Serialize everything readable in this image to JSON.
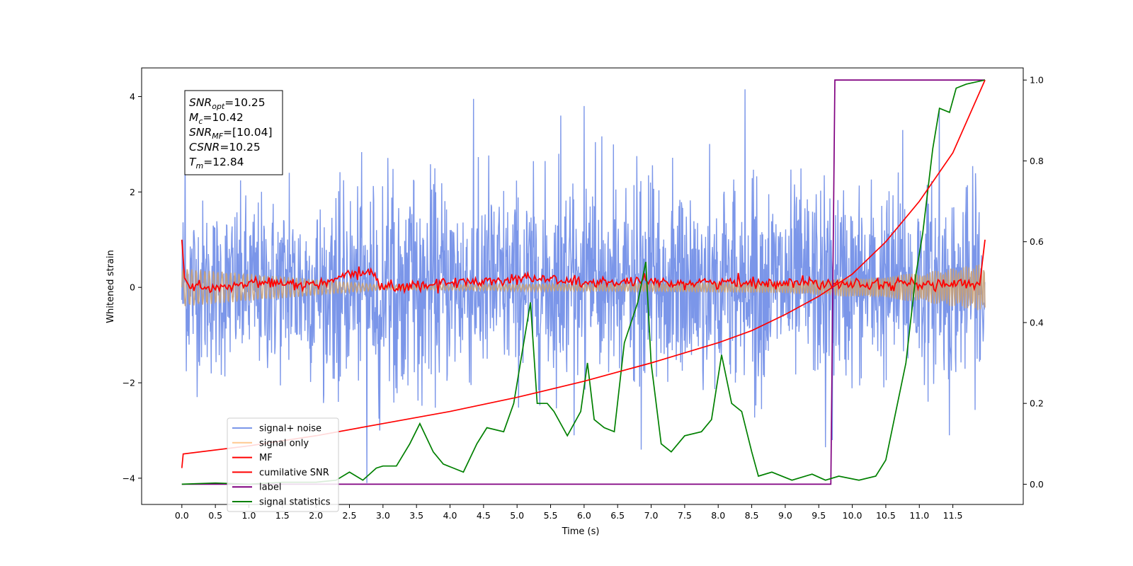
{
  "chart_data": {
    "type": "line",
    "xlabel": "Time (s)",
    "ylabel": "Whitened strain",
    "xlim": [
      -0.6,
      12.55
    ],
    "ylim": [
      -4.55,
      4.6
    ],
    "ylim_right": [
      -0.05,
      1.03
    ],
    "xticks": [
      "0.0",
      "0.5",
      "1.0",
      "1.5",
      "2.0",
      "2.5",
      "3.0",
      "3.5",
      "4.0",
      "4.5",
      "5.0",
      "5.5",
      "6.0",
      "6.5",
      "7.0",
      "7.5",
      "8.0",
      "8.5",
      "9.0",
      "9.5",
      "10.0",
      "10.5",
      "11.0",
      "11.5"
    ],
    "yticks_left": [
      "4",
      "2",
      "0",
      "−2",
      "−4"
    ],
    "yticks_right": [
      "1.0",
      "0.8",
      "0.6",
      "0.4",
      "0.2",
      "0.0"
    ],
    "grid": false,
    "legend_position": "lower-left",
    "legend": [
      "signal+ noise",
      "signal only",
      "MF",
      "cumilative SNR",
      "label",
      "signal statistics"
    ],
    "annotation": [
      {
        "base": "SNR",
        "sub": "opt",
        "rest": "=10.25"
      },
      {
        "base": "M",
        "sub": "c",
        "rest": "=10.42"
      },
      {
        "base": "SNR",
        "sub": "MF",
        "rest": "=[10.04]"
      },
      {
        "base": "CSNR",
        "sub": "",
        "rest": "=10.25"
      },
      {
        "base": "T",
        "sub": "m",
        "rest": "=12.84"
      }
    ],
    "series": [
      {
        "name": "signal+ noise",
        "axis": "left",
        "color": "#7b96e9",
        "envelope": {
          "x": [
            0,
            0.5,
            1.0,
            2.0,
            3.0,
            4.0,
            5.0,
            6.0,
            7.0,
            8.0,
            9.0,
            10.0,
            11.0,
            11.98
          ],
          "high": [
            2.8,
            2.4,
            2.6,
            2.7,
            3.0,
            3.2,
            3.0,
            3.3,
            3.0,
            3.1,
            3.0,
            3.0,
            3.0,
            2.7
          ],
          "low": [
            -2.4,
            -2.6,
            -2.5,
            -2.6,
            -2.8,
            -2.8,
            -2.7,
            -2.9,
            -2.8,
            -2.9,
            -2.7,
            -2.7,
            -2.6,
            -2.6
          ]
        },
        "spikes": [
          [
            0.05,
            3.2
          ],
          [
            1.6,
            2.4
          ],
          [
            2.76,
            -4.1
          ],
          [
            2.95,
            -3.0
          ],
          [
            4.35,
            3.95
          ],
          [
            5.65,
            3.6
          ],
          [
            5.85,
            -3.1
          ],
          [
            6.0,
            3.8
          ],
          [
            6.85,
            -3.4
          ],
          [
            8.4,
            4.15
          ],
          [
            9.6,
            -3.35
          ],
          [
            9.7,
            -3.2
          ],
          [
            10.75,
            3.3
          ],
          [
            11.3,
            3.7
          ],
          [
            11.45,
            -3.1
          ]
        ]
      },
      {
        "name": "signal only",
        "axis": "left",
        "color": "#c8a077",
        "amplitude": {
          "x": [
            0,
            3,
            6,
            9,
            10,
            11,
            11.98
          ],
          "y": [
            0.4,
            0.05,
            0.08,
            0.12,
            0.2,
            0.3,
            0.5
          ]
        }
      },
      {
        "name": "MF",
        "axis": "left",
        "color": "#ff0000",
        "points": [
          [
            0.0,
            1.0
          ],
          [
            0.04,
            0.2
          ],
          [
            0.1,
            0.05
          ],
          [
            0.5,
            -0.05
          ],
          [
            1.0,
            0.1
          ],
          [
            2.0,
            0.05
          ],
          [
            2.8,
            0.35
          ],
          [
            3.0,
            0.0
          ],
          [
            5.2,
            0.2
          ],
          [
            6.0,
            0.1
          ],
          [
            9.5,
            0.1
          ],
          [
            11.9,
            0.05
          ],
          [
            11.98,
            1.0
          ]
        ],
        "noise_amp": 0.1
      },
      {
        "name": "cumilative SNR",
        "axis": "right",
        "color": "#ff0000",
        "x": [
          0.0,
          0.02,
          1.0,
          2.0,
          3.0,
          4.0,
          5.0,
          6.0,
          7.0,
          8.0,
          8.5,
          9.0,
          9.5,
          10.0,
          10.5,
          11.0,
          11.5,
          11.98
        ],
        "y": [
          0.04,
          0.075,
          0.095,
          0.12,
          0.15,
          0.18,
          0.215,
          0.255,
          0.3,
          0.35,
          0.38,
          0.42,
          0.465,
          0.52,
          0.6,
          0.7,
          0.82,
          1.0
        ]
      },
      {
        "name": "label",
        "axis": "right",
        "color": "#800080",
        "x": [
          0.0,
          9.68,
          9.74,
          11.98
        ],
        "y": [
          0.0,
          0.0,
          1.0,
          1.0
        ]
      },
      {
        "name": "signal statistics",
        "axis": "right",
        "color": "#008000",
        "x": [
          0.0,
          0.5,
          1.0,
          1.5,
          2.0,
          2.3,
          2.5,
          2.7,
          2.9,
          3.0,
          3.2,
          3.4,
          3.55,
          3.75,
          3.9,
          4.2,
          4.4,
          4.55,
          4.8,
          4.95,
          5.05,
          5.2,
          5.3,
          5.45,
          5.55,
          5.75,
          5.95,
          6.05,
          6.15,
          6.3,
          6.45,
          6.6,
          6.8,
          6.92,
          7.0,
          7.15,
          7.3,
          7.5,
          7.75,
          7.9,
          8.05,
          8.2,
          8.35,
          8.5,
          8.6,
          8.8,
          9.1,
          9.4,
          9.6,
          9.8,
          10.1,
          10.35,
          10.5,
          10.65,
          10.8,
          10.95,
          11.05,
          11.2,
          11.3,
          11.45,
          11.55,
          11.7,
          11.98
        ],
        "y": [
          0.0,
          0.003,
          0.0,
          0.005,
          0.005,
          0.01,
          0.03,
          0.01,
          0.04,
          0.045,
          0.045,
          0.1,
          0.15,
          0.08,
          0.05,
          0.03,
          0.1,
          0.14,
          0.13,
          0.2,
          0.3,
          0.45,
          0.2,
          0.2,
          0.18,
          0.12,
          0.18,
          0.3,
          0.16,
          0.14,
          0.13,
          0.35,
          0.45,
          0.55,
          0.3,
          0.1,
          0.08,
          0.12,
          0.13,
          0.16,
          0.32,
          0.2,
          0.18,
          0.08,
          0.02,
          0.03,
          0.01,
          0.025,
          0.01,
          0.02,
          0.01,
          0.02,
          0.06,
          0.18,
          0.3,
          0.52,
          0.62,
          0.83,
          0.93,
          0.92,
          0.98,
          0.99,
          1.0
        ]
      }
    ]
  }
}
